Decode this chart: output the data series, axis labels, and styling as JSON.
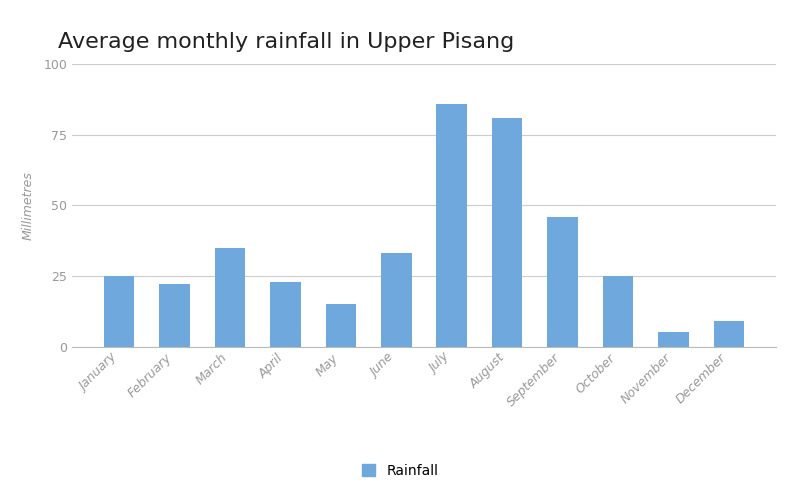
{
  "title": "Average monthly rainfall in Upper Pisang",
  "ylabel": "Millimetres",
  "legend_label": "Rainfall",
  "bar_color": "#6fa8dc",
  "background_color": "#ffffff",
  "categories": [
    "January",
    "February",
    "March",
    "April",
    "May",
    "June",
    "July",
    "August",
    "September",
    "October",
    "November",
    "December"
  ],
  "values": [
    25,
    22,
    35,
    23,
    15,
    33,
    86,
    81,
    46,
    25,
    5,
    9
  ],
  "ylim": [
    0,
    100
  ],
  "yticks": [
    0,
    25,
    50,
    75,
    100
  ],
  "grid_color": "#cccccc",
  "title_fontsize": 16,
  "axis_label_fontsize": 9,
  "tick_fontsize": 9,
  "legend_fontsize": 10,
  "tick_color": "#999999",
  "ylabel_color": "#999999",
  "title_color": "#212121"
}
